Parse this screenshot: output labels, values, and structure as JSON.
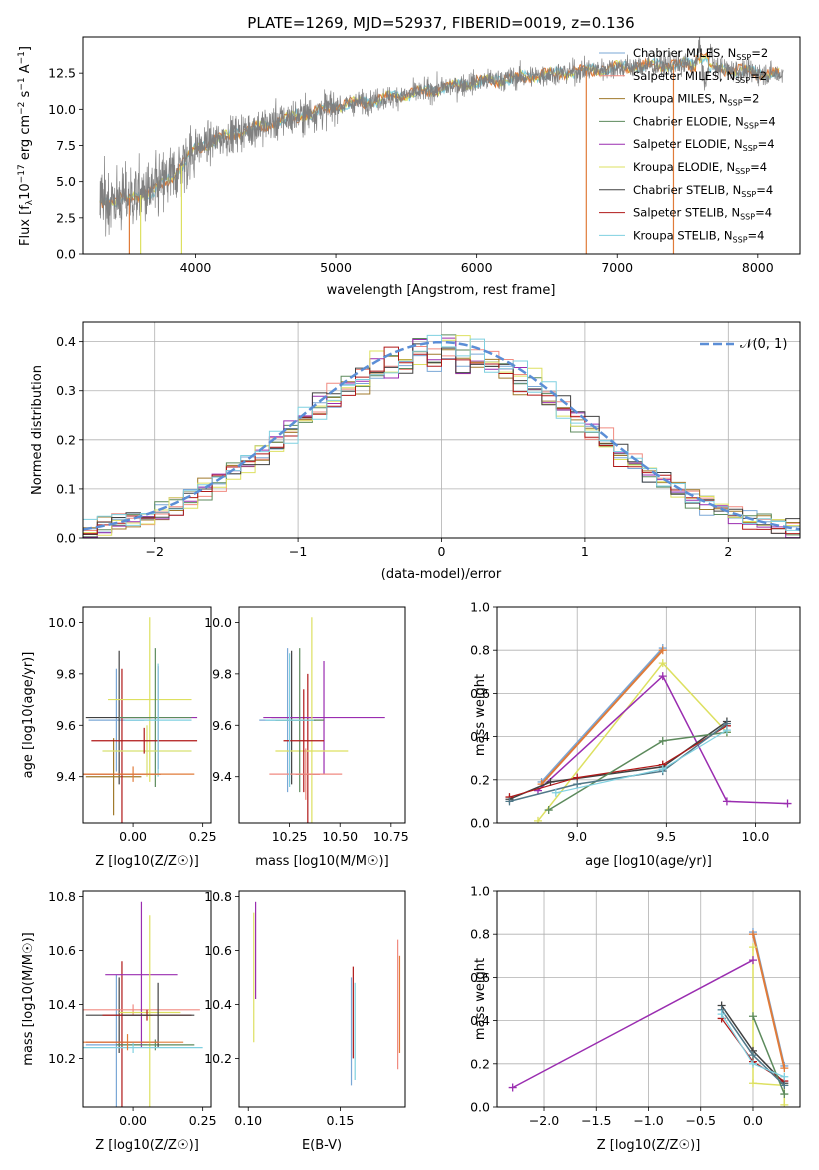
{
  "figure_title": "PLATE=1269, MJD=52937, FIBERID=0019, z=0.136",
  "legend_spectrum": [
    {
      "name": "Chabrier MILES, N",
      "sub": "SSP",
      "tail": "=2",
      "color": "#7aa7d6"
    },
    {
      "name": "Salpeter MILES, N",
      "sub": "SSP",
      "tail": "=2",
      "color": "#f08a80"
    },
    {
      "name": "Kroupa MILES, N",
      "sub": "SSP",
      "tail": "=2",
      "color": "#a07a2c"
    },
    {
      "name": "Chabrier ELODIE, N",
      "sub": "SSP",
      "tail": "=4",
      "color": "#5c8a5c"
    },
    {
      "name": "Salpeter ELODIE, N",
      "sub": "SSP",
      "tail": "=4",
      "color": "#9a2db0"
    },
    {
      "name": "Kroupa ELODIE, N",
      "sub": "SSP",
      "tail": "=4",
      "color": "#dde060"
    },
    {
      "name": "Chabrier STELIB, N",
      "sub": "SSP",
      "tail": "=4",
      "color": "#404040"
    },
    {
      "name": "Salpeter STELIB, N",
      "sub": "SSP",
      "tail": "=4",
      "color": "#b01818"
    },
    {
      "name": "Kroupa STELIB, N",
      "sub": "SSP",
      "tail": "=4",
      "color": "#7fd0e0"
    }
  ],
  "colors": {
    "data": "#808080",
    "orange": "#e07b39",
    "gaussian": "#5b8ed6",
    "grid": "#b0b0b0"
  },
  "chart_data": [
    {
      "id": "spectrum",
      "type": "line",
      "xlabel": "wavelength [Angstrom, rest frame]",
      "ylabel": "Flux [f_λ 10^-17 erg cm^-2 s^-1 A^-1]",
      "xlim": [
        3200,
        8300
      ],
      "ylim": [
        0,
        15
      ],
      "xticks": [
        4000,
        5000,
        6000,
        7000,
        8000
      ],
      "yticks": [
        0.0,
        2.5,
        5.0,
        7.5,
        10.0,
        12.5
      ],
      "ytick_labels": [
        "0.0",
        "2.5",
        "5.0",
        "7.5",
        "10.0",
        "12.5"
      ],
      "continuum_anchors": {
        "x": [
          3300,
          3500,
          3700,
          3850,
          4000,
          4300,
          4600,
          5000,
          5500,
          6000,
          6500,
          7000,
          7500,
          8000,
          8200
        ],
        "y": [
          3.6,
          3.8,
          4.3,
          5.5,
          7.3,
          8.4,
          9.2,
          10.2,
          11.0,
          11.9,
          12.4,
          12.9,
          13.1,
          12.5,
          12.4
        ]
      },
      "dropouts": [
        3530,
        3610,
        3900,
        6780,
        7400
      ],
      "grid": false
    },
    {
      "id": "residuals",
      "type": "step-histogram",
      "xlabel": "(data-model)/error",
      "ylabel": "Normed distribution",
      "xlim": [
        -2.5,
        2.5
      ],
      "ylim": [
        0,
        0.44
      ],
      "xticks": [
        -2,
        -1,
        0,
        1,
        2
      ],
      "xtick_labels": [
        "−2",
        "−1",
        "0",
        "1",
        "2"
      ],
      "yticks": [
        0.0,
        0.1,
        0.2,
        0.3,
        0.4
      ],
      "ytick_labels": [
        "0.0",
        "0.1",
        "0.2",
        "0.3",
        "0.4"
      ],
      "bin_width": 0.1,
      "gaussian_label": "𝒩(0, 1)",
      "grid": true
    },
    {
      "id": "age_vs_Z",
      "type": "errorbar",
      "xlabel": "Z [log10(Z/Z☉)]",
      "ylabel": "age [log10(age/yr)]",
      "xlim": [
        -0.18,
        0.28
      ],
      "ylim": [
        9.22,
        10.06
      ],
      "xticks": [
        0.0,
        0.25
      ],
      "xtick_labels": [
        "0.00",
        "0.25"
      ],
      "yticks": [
        9.4,
        9.6,
        9.8,
        10.0
      ],
      "ytick_labels": [
        "9.4",
        "9.6",
        "9.8",
        "10.0"
      ],
      "points": [
        {
          "x": -0.06,
          "xerr": 0.1,
          "y": 9.62,
          "yerr": 0.2,
          "c": "#7aa7d6"
        },
        {
          "x": -0.05,
          "xerr": 0.12,
          "y": 9.63,
          "yerr": 0.26,
          "c": "#404040"
        },
        {
          "x": -0.07,
          "xerr": 0.1,
          "y": 9.4,
          "yerr": 0.15,
          "c": "#a07a2c"
        },
        {
          "x": -0.04,
          "xerr": 0.14,
          "y": 9.41,
          "yerr": 0.41,
          "c": "#b01818"
        },
        {
          "x": 0.09,
          "xerr": 0.14,
          "y": 9.63,
          "yerr": 0.2,
          "c": "#9a2db0"
        },
        {
          "x": 0.06,
          "xerr": 0.15,
          "y": 9.7,
          "yerr": 0.32,
          "c": "#dde060"
        },
        {
          "x": 0.08,
          "xerr": 0.13,
          "y": 9.63,
          "yerr": 0.27,
          "c": "#5c8a5c"
        },
        {
          "x": 0.05,
          "xerr": 0.16,
          "y": 9.5,
          "yerr": 0.1,
          "c": "#d8e070"
        },
        {
          "x": 0.04,
          "xerr": 0.19,
          "y": 9.54,
          "yerr": 0.05,
          "c": "#b01818"
        },
        {
          "x": 0.09,
          "xerr": 0.12,
          "y": 9.62,
          "yerr": 0.22,
          "c": "#7fd0e0"
        },
        {
          "x": 0.0,
          "xerr": 0.22,
          "y": 9.41,
          "yerr": 0.03,
          "c": "#e07b39"
        }
      ]
    },
    {
      "id": "age_vs_mass",
      "type": "errorbar",
      "xlabel": "mass [log10(M/M☉)]",
      "ylabel": "",
      "xlim": [
        10.0,
        10.82
      ],
      "ylim": [
        9.22,
        10.06
      ],
      "xticks": [
        10.25,
        10.5,
        10.75
      ],
      "xtick_labels": [
        "10.25",
        "10.50",
        "10.75"
      ],
      "yticks": [
        9.4,
        9.6,
        9.8,
        10.0
      ],
      "ytick_labels": [
        "9.4",
        "9.6",
        "9.8",
        "10.0"
      ],
      "points": [
        {
          "x": 10.24,
          "xerr": 0.14,
          "y": 9.62,
          "yerr": 0.28,
          "c": "#7aa7d6"
        },
        {
          "x": 10.26,
          "xerr": 0.1,
          "y": 9.63,
          "yerr": 0.26,
          "c": "#404040"
        },
        {
          "x": 10.34,
          "xerr": 0.06,
          "y": 9.41,
          "yerr": 0.39,
          "c": "#b01818"
        },
        {
          "x": 10.42,
          "xerr": 0.3,
          "y": 9.63,
          "yerr": 0.22,
          "c": "#9a2db0"
        },
        {
          "x": 10.36,
          "xerr": 0.18,
          "y": 9.5,
          "yerr": 0.52,
          "c": "#dde060"
        },
        {
          "x": 10.3,
          "xerr": 0.12,
          "y": 9.62,
          "yerr": 0.28,
          "c": "#5c8a5c"
        },
        {
          "x": 10.32,
          "xerr": 0.1,
          "y": 9.54,
          "yerr": 0.2,
          "c": "#b01818"
        },
        {
          "x": 10.33,
          "xerr": 0.18,
          "y": 9.41,
          "yerr": 0.1,
          "c": "#f08a80"
        },
        {
          "x": 10.25,
          "xerr": 0.12,
          "y": 9.62,
          "yerr": 0.26,
          "c": "#7fd0e0"
        }
      ]
    },
    {
      "id": "weight_vs_age",
      "type": "line",
      "xlabel": "age [log10(age/yr)]",
      "ylabel": "mass weight",
      "xlim": [
        8.55,
        10.25
      ],
      "ylim": [
        0,
        1.0
      ],
      "xticks": [
        9.0,
        9.5,
        10.0
      ],
      "xtick_labels": [
        "9.0",
        "9.5",
        "10.0"
      ],
      "yticks": [
        0.0,
        0.2,
        0.4,
        0.6,
        0.8,
        1.0
      ],
      "ytick_labels": [
        "0.0",
        "0.2",
        "0.4",
        "0.6",
        "0.8",
        "1.0"
      ],
      "grid": true,
      "series": [
        {
          "c": "#7aa7d6",
          "w": 2,
          "x": [
            8.8,
            9.48
          ],
          "y": [
            0.19,
            0.81
          ]
        },
        {
          "c": "#e07b39",
          "w": 2,
          "x": [
            8.8,
            9.48
          ],
          "y": [
            0.18,
            0.8
          ]
        },
        {
          "c": "#dde060",
          "w": 1.5,
          "x": [
            8.78,
            9.48,
            9.84
          ],
          "y": [
            0.01,
            0.74,
            0.42
          ]
        },
        {
          "c": "#9a2db0",
          "w": 1.5,
          "x": [
            8.78,
            9.48,
            9.84,
            10.18
          ],
          "y": [
            0.15,
            0.68,
            0.1,
            0.09
          ]
        },
        {
          "c": "#404040",
          "w": 1.5,
          "x": [
            8.62,
            8.85,
            9.48,
            9.84
          ],
          "y": [
            0.11,
            0.19,
            0.26,
            0.47
          ]
        },
        {
          "c": "#b01818",
          "w": 1.2,
          "x": [
            8.62,
            9.0,
            9.48,
            9.84
          ],
          "y": [
            0.12,
            0.21,
            0.27,
            0.45
          ]
        },
        {
          "c": "#5c8a5c",
          "w": 1.5,
          "x": [
            8.84,
            9.48,
            9.84
          ],
          "y": [
            0.06,
            0.38,
            0.42
          ]
        },
        {
          "c": "#507888",
          "w": 1.5,
          "x": [
            8.62,
            9.0,
            9.48,
            9.84
          ],
          "y": [
            0.1,
            0.18,
            0.24,
            0.46
          ]
        },
        {
          "c": "#7fd0e0",
          "w": 1.2,
          "x": [
            8.88,
            9.48,
            9.84
          ],
          "y": [
            0.14,
            0.25,
            0.43
          ]
        }
      ]
    },
    {
      "id": "mass_vs_Z",
      "type": "errorbar",
      "xlabel": "Z [log10(Z/Z☉)]",
      "ylabel": "mass [log10(M/M☉)]",
      "xlim": [
        -0.18,
        0.28
      ],
      "ylim": [
        10.02,
        10.82
      ],
      "xticks": [
        0.0,
        0.25
      ],
      "xtick_labels": [
        "0.00",
        "0.25"
      ],
      "yticks": [
        10.2,
        10.4,
        10.6,
        10.8
      ],
      "ytick_labels": [
        "10.2",
        "10.4",
        "10.6",
        "10.8"
      ],
      "points": [
        {
          "x": -0.06,
          "xerr": 0.11,
          "y": 10.25,
          "yerr": 0.26,
          "c": "#7aa7d6"
        },
        {
          "x": -0.05,
          "xerr": 0.12,
          "y": 10.36,
          "yerr": 0.14,
          "c": "#404040"
        },
        {
          "x": -0.04,
          "xerr": 0.13,
          "y": 10.26,
          "yerr": 0.3,
          "c": "#b01818"
        },
        {
          "x": 0.0,
          "xerr": 0.24,
          "y": 10.38,
          "yerr": 0.02,
          "c": "#f08a80"
        },
        {
          "x": 0.03,
          "xerr": 0.13,
          "y": 10.51,
          "yerr": 0.27,
          "c": "#9a2db0"
        },
        {
          "x": 0.06,
          "xerr": 0.11,
          "y": 10.37,
          "yerr": 0.36,
          "c": "#dde060"
        },
        {
          "x": 0.08,
          "xerr": 0.14,
          "y": 10.25,
          "yerr": 0.02,
          "c": "#5c8a5c"
        },
        {
          "x": 0.05,
          "xerr": 0.16,
          "y": 10.36,
          "yerr": 0.02,
          "c": "#b01818"
        },
        {
          "x": 0.09,
          "xerr": 0.13,
          "y": 10.36,
          "yerr": 0.12,
          "c": "#404040"
        },
        {
          "x": 0.0,
          "xerr": 0.25,
          "y": 10.24,
          "yerr": 0.02,
          "c": "#7fd0e0"
        },
        {
          "x": -0.02,
          "xerr": 0.2,
          "y": 10.26,
          "yerr": 0.03,
          "c": "#e07b39"
        }
      ]
    },
    {
      "id": "mass_vs_ebv",
      "type": "errorbar",
      "xlabel": "E(B-V)",
      "ylabel": "",
      "xlim": [
        0.095,
        0.185
      ],
      "ylim": [
        10.02,
        10.82
      ],
      "xticks": [
        0.1,
        0.15
      ],
      "xtick_labels": [
        "0.10",
        "0.15"
      ],
      "yticks": [
        10.2,
        10.4,
        10.6,
        10.8
      ],
      "ytick_labels": [
        "10.2",
        "10.4",
        "10.6",
        "10.8"
      ],
      "points": [
        {
          "x": 0.103,
          "xerr": 0,
          "y": 10.5,
          "yerr": 0.24,
          "c": "#dde060"
        },
        {
          "x": 0.104,
          "xerr": 0,
          "y": 10.6,
          "yerr": 0.18,
          "c": "#9a2db0"
        },
        {
          "x": 0.156,
          "xerr": 0,
          "y": 10.3,
          "yerr": 0.2,
          "c": "#7aa7d6"
        },
        {
          "x": 0.157,
          "xerr": 0,
          "y": 10.37,
          "yerr": 0.17,
          "c": "#b01818"
        },
        {
          "x": 0.158,
          "xerr": 0,
          "y": 10.3,
          "yerr": 0.18,
          "c": "#7fd0e0"
        },
        {
          "x": 0.181,
          "xerr": 0,
          "y": 10.4,
          "yerr": 0.24,
          "c": "#f08a80"
        },
        {
          "x": 0.182,
          "xerr": 0,
          "y": 10.4,
          "yerr": 0.18,
          "c": "#e07b39"
        }
      ]
    },
    {
      "id": "weight_vs_Z",
      "type": "line",
      "xlabel": "Z [log10(Z/Z☉)]",
      "ylabel": "mass weight",
      "xlim": [
        -2.45,
        0.45
      ],
      "ylim": [
        0,
        1.0
      ],
      "xticks": [
        -2.0,
        -1.5,
        -1.0,
        -0.5,
        0.0
      ],
      "xtick_labels": [
        "−2.0",
        "−1.5",
        "−1.0",
        "−0.5",
        "0.0"
      ],
      "yticks": [
        0.0,
        0.2,
        0.4,
        0.6,
        0.8,
        1.0
      ],
      "ytick_labels": [
        "0.0",
        "0.2",
        "0.4",
        "0.6",
        "0.8",
        "1.0"
      ],
      "grid": true,
      "series": [
        {
          "c": "#7aa7d6",
          "w": 2,
          "x": [
            0.0,
            0.3
          ],
          "y": [
            0.81,
            0.19
          ]
        },
        {
          "c": "#e07b39",
          "w": 2,
          "x": [
            0.0,
            0.3
          ],
          "y": [
            0.8,
            0.18
          ]
        },
        {
          "c": "#dde060",
          "w": 1.5,
          "x": [
            0.0,
            0.0,
            0.3,
            0.3
          ],
          "y": [
            0.74,
            0.11,
            0.1,
            0.01
          ]
        },
        {
          "c": "#9a2db0",
          "w": 1.5,
          "x": [
            -2.3,
            0.0
          ],
          "y": [
            0.09,
            0.68
          ]
        },
        {
          "c": "#404040",
          "w": 1.5,
          "x": [
            -0.3,
            0.0,
            0.3
          ],
          "y": [
            0.47,
            0.26,
            0.11
          ]
        },
        {
          "c": "#b01818",
          "w": 1.2,
          "x": [
            -0.3,
            0.0,
            0.3
          ],
          "y": [
            0.41,
            0.21,
            0.12
          ]
        },
        {
          "c": "#5c8a5c",
          "w": 1.5,
          "x": [
            0.0,
            0.3
          ],
          "y": [
            0.42,
            0.06
          ]
        },
        {
          "c": "#507888",
          "w": 1.5,
          "x": [
            -0.3,
            0.0,
            0.3
          ],
          "y": [
            0.45,
            0.24,
            0.1
          ]
        },
        {
          "c": "#7fd0e0",
          "w": 1.2,
          "x": [
            -0.3,
            0.0,
            0.3
          ],
          "y": [
            0.43,
            0.2,
            0.14
          ]
        }
      ]
    }
  ]
}
